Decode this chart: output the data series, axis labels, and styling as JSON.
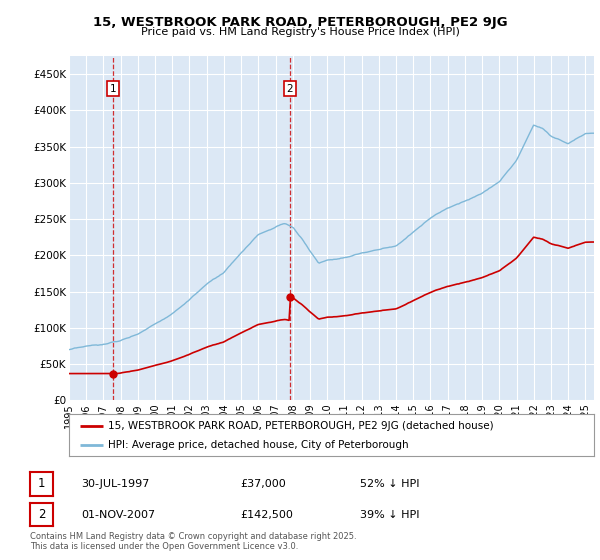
{
  "title_line1": "15, WESTBROOK PARK ROAD, PETERBOROUGH, PE2 9JG",
  "title_line2": "Price paid vs. HM Land Registry's House Price Index (HPI)",
  "ylabel_ticks": [
    "£0",
    "£50K",
    "£100K",
    "£150K",
    "£200K",
    "£250K",
    "£300K",
    "£350K",
    "£400K",
    "£450K"
  ],
  "ylabel_values": [
    0,
    50000,
    100000,
    150000,
    200000,
    250000,
    300000,
    350000,
    400000,
    450000
  ],
  "ylim": [
    0,
    475000
  ],
  "xlim_start": 1995.0,
  "xlim_end": 2025.5,
  "purchase1": {
    "date_num": 1997.58,
    "price": 37000,
    "label": "1",
    "date_str": "30-JUL-1997",
    "price_str": "£37,000",
    "hpi_str": "52% ↓ HPI"
  },
  "purchase2": {
    "date_num": 2007.83,
    "price": 142500,
    "label": "2",
    "date_str": "01-NOV-2007",
    "price_str": "£142,500",
    "hpi_str": "39% ↓ HPI"
  },
  "hpi_color": "#7fb8d8",
  "price_color": "#cc0000",
  "background_color": "#dce8f5",
  "grid_color": "#ffffff",
  "legend_label1": "15, WESTBROOK PARK ROAD, PETERBOROUGH, PE2 9JG (detached house)",
  "legend_label2": "HPI: Average price, detached house, City of Peterborough",
  "footnote": "Contains HM Land Registry data © Crown copyright and database right 2025.\nThis data is licensed under the Open Government Licence v3.0.",
  "xtick_years": [
    1995,
    1996,
    1997,
    1998,
    1999,
    2000,
    2001,
    2002,
    2003,
    2004,
    2005,
    2006,
    2007,
    2008,
    2009,
    2010,
    2011,
    2012,
    2013,
    2014,
    2015,
    2016,
    2017,
    2018,
    2019,
    2020,
    2021,
    2022,
    2023,
    2024,
    2025
  ]
}
